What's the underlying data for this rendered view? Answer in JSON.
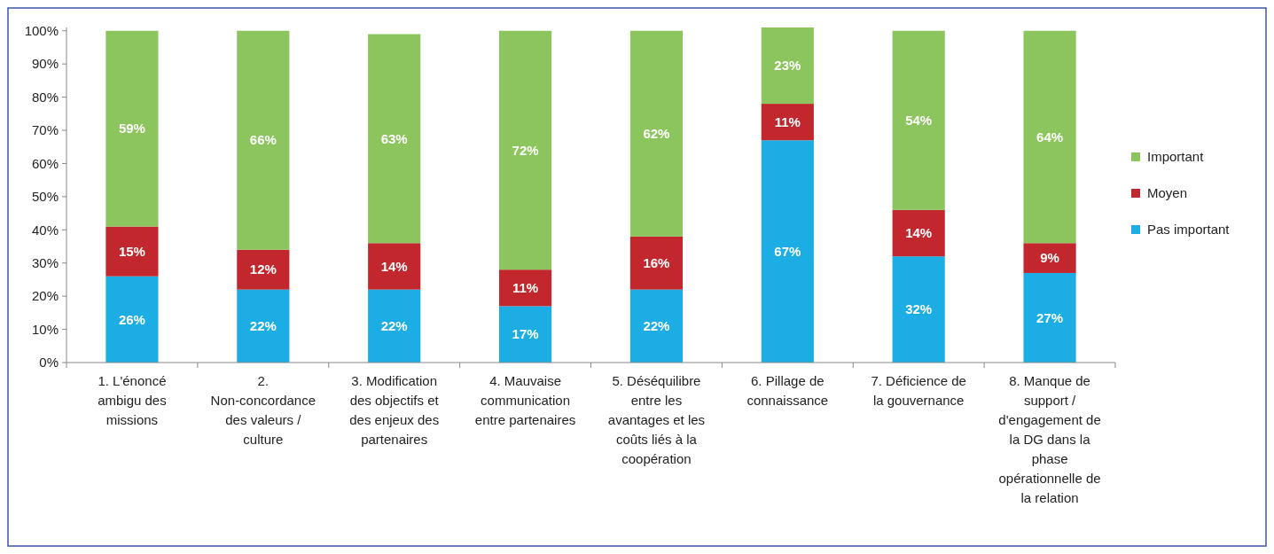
{
  "chart_data": {
    "type": "bar",
    "stacked": true,
    "categories": [
      "1. L'énoncé ambigu des missions",
      "2. Non-concordance des valeurs / culture",
      "3. Modification des objectifs et des enjeux des partenaires",
      "4. Mauvaise communication entre partenaires",
      "5. Déséquilibre entre les avantages et les coûts liés à la coopération",
      "6. Pillage de connaissance",
      "7. Déficience de la gouvernance",
      "8. Manque de support / d'engagement de la DG dans la phase opérationnelle de la relation"
    ],
    "series": [
      {
        "name": "Pas important",
        "color": "#1cade4",
        "values": [
          26,
          22,
          22,
          17,
          22,
          67,
          32,
          27
        ],
        "value_labels": [
          "26%",
          "22%",
          "22%",
          "17%",
          "22%",
          "67%",
          "32%",
          "27%"
        ]
      },
      {
        "name": "Moyen",
        "color": "#c1272d",
        "values": [
          15,
          12,
          14,
          11,
          16,
          11,
          14,
          9
        ],
        "value_labels": [
          "15%",
          "12%",
          "14%",
          "11%",
          "16%",
          "11%",
          "14%",
          "9%"
        ]
      },
      {
        "name": "Important",
        "color": "#8cc55e",
        "values": [
          59,
          66,
          63,
          72,
          62,
          23,
          54,
          64
        ],
        "value_labels": [
          "59%",
          "66%",
          "63%",
          "72%",
          "62%",
          "23%",
          "54%",
          "64%"
        ]
      }
    ],
    "ylim": [
      0,
      101
    ],
    "yticks": [
      {
        "value": 0,
        "label": "0%"
      },
      {
        "value": 10,
        "label": "10%"
      },
      {
        "value": 20,
        "label": "20%"
      },
      {
        "value": 30,
        "label": "30%"
      },
      {
        "value": 40,
        "label": "40%"
      },
      {
        "value": 50,
        "label": "50%"
      },
      {
        "value": 60,
        "label": "60%"
      },
      {
        "value": 70,
        "label": "70%"
      },
      {
        "value": 80,
        "label": "80%"
      },
      {
        "value": 90,
        "label": "90%"
      },
      {
        "value": 100,
        "label": "100%"
      }
    ],
    "legend": "right",
    "grid": false
  }
}
